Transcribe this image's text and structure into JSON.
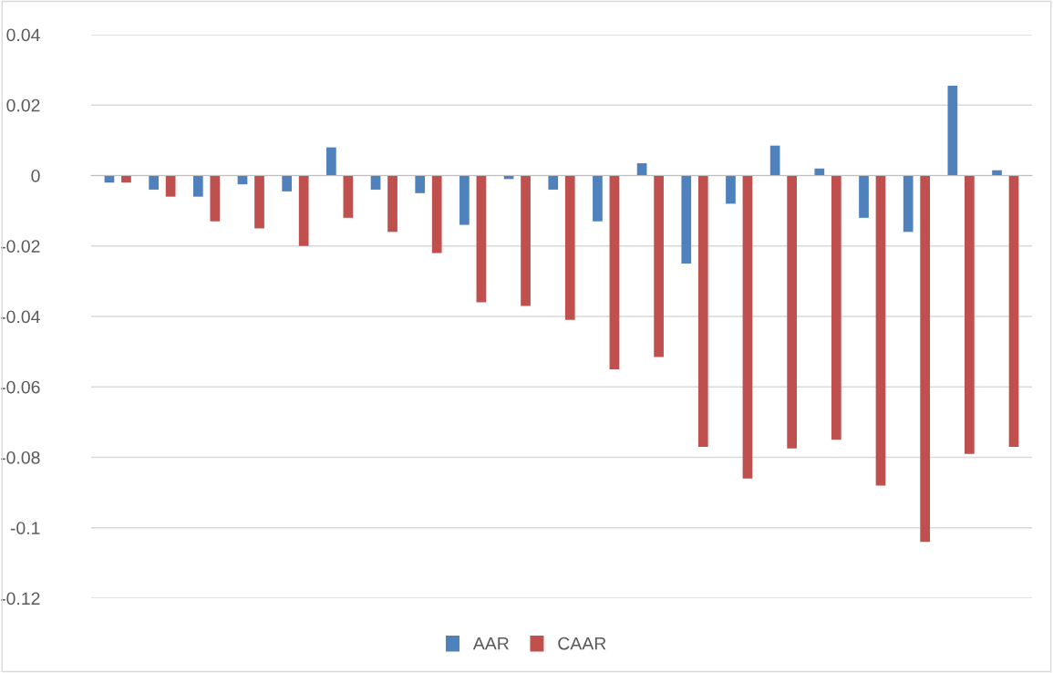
{
  "chart_data": {
    "type": "bar",
    "categories": [
      null,
      null,
      null,
      null,
      null,
      null,
      null,
      null,
      null,
      null,
      null,
      null,
      null,
      null,
      null,
      null,
      null,
      null,
      null,
      null,
      null
    ],
    "series": [
      {
        "name": "AAR",
        "color": "#4f81bd",
        "values": [
          -0.002,
          -0.004,
          -0.006,
          -0.0025,
          -0.0045,
          0.008,
          -0.004,
          -0.005,
          -0.014,
          -0.001,
          -0.004,
          -0.013,
          0.0035,
          -0.025,
          -0.008,
          0.0085,
          0.002,
          -0.012,
          -0.016,
          0.0255,
          0.0015
        ]
      },
      {
        "name": "CAAR",
        "color": "#c0504d",
        "values": [
          -0.002,
          -0.006,
          -0.013,
          -0.015,
          -0.02,
          -0.012,
          -0.016,
          -0.022,
          -0.036,
          -0.037,
          -0.041,
          -0.055,
          -0.0515,
          -0.077,
          -0.086,
          -0.0775,
          -0.075,
          -0.088,
          -0.104,
          -0.079,
          -0.077
        ]
      }
    ],
    "ylim": [
      -0.12,
      0.04
    ],
    "yticks": [
      {
        "value": -0.12,
        "label": "-0.12"
      },
      {
        "value": -0.1,
        "label": "-0.1"
      },
      {
        "value": -0.08,
        "label": "-0.08"
      },
      {
        "value": -0.06,
        "label": "-0.06"
      },
      {
        "value": -0.04,
        "label": "-0.04"
      },
      {
        "value": -0.02,
        "label": "-0.02"
      },
      {
        "value": 0,
        "label": "0"
      },
      {
        "value": 0.02,
        "label": "0.02"
      },
      {
        "value": 0.04,
        "label": "0.04"
      }
    ],
    "grid": "y",
    "legend": "bottom"
  }
}
